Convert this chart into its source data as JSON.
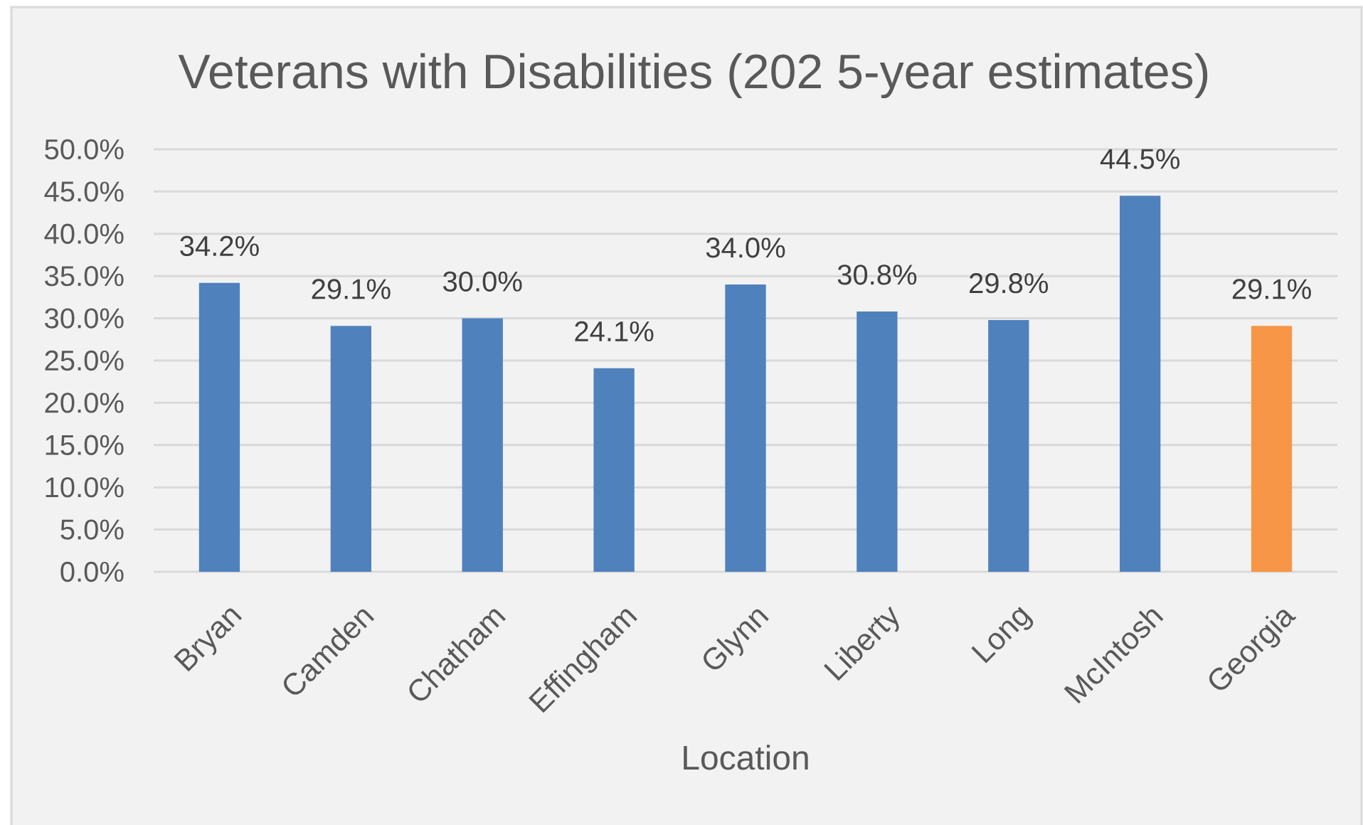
{
  "chart_data": {
    "type": "bar",
    "title": "Veterans with Disabilities (202 5-year estimates)",
    "xlabel": "Location",
    "categories": [
      "Bryan",
      "Camden",
      "Chatham",
      "Effingham",
      "Glynn",
      "Liberty",
      "Long",
      "McIntosh",
      "Georgia"
    ],
    "values": [
      34.2,
      29.1,
      30.0,
      24.1,
      34.0,
      30.8,
      29.8,
      44.5,
      29.1
    ],
    "colors": [
      "#4f81bd",
      "#4f81bd",
      "#4f81bd",
      "#4f81bd",
      "#4f81bd",
      "#4f81bd",
      "#4f81bd",
      "#4f81bd",
      "#f79646"
    ],
    "value_labels": [
      "34.2%",
      "29.1%",
      "30.0%",
      "24.1%",
      "34.0%",
      "30.8%",
      "29.8%",
      "44.5%",
      "29.1%"
    ],
    "ylim": [
      0,
      50
    ],
    "yticks": [
      {
        "value": 0,
        "label": "0.0%"
      },
      {
        "value": 5,
        "label": "5.0%"
      },
      {
        "value": 10,
        "label": "10.0%"
      },
      {
        "value": 15,
        "label": "15.0%"
      },
      {
        "value": 20,
        "label": "20.0%"
      },
      {
        "value": 25,
        "label": "25.0%"
      },
      {
        "value": 30,
        "label": "30.0%"
      },
      {
        "value": 35,
        "label": "35.0%"
      },
      {
        "value": 40,
        "label": "40.0%"
      },
      {
        "value": 45,
        "label": "45.0%"
      },
      {
        "value": 50,
        "label": "50.0%"
      }
    ],
    "grid": "y"
  }
}
